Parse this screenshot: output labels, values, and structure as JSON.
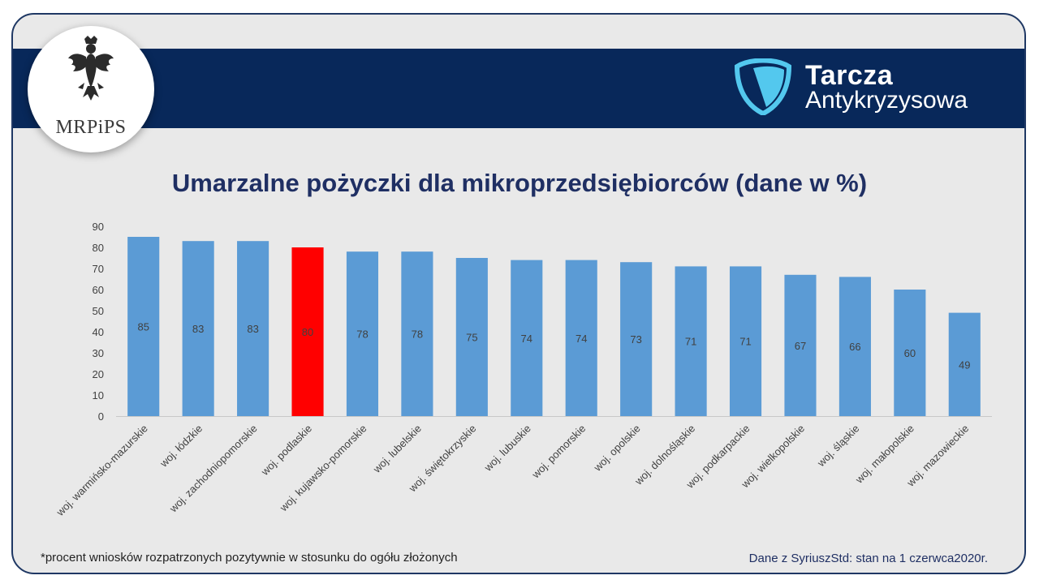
{
  "header": {
    "ministry": "MRPiPS",
    "brand_line1": "Tarcza",
    "brand_line2": "Antykryzysowa"
  },
  "colors": {
    "banner": "#08285a",
    "bar_default": "#5b9bd5",
    "bar_highlight": "#ff0000",
    "title": "#1f2f63",
    "shield": "#53c8ee"
  },
  "chart_data": {
    "type": "bar",
    "title": "Umarzalne pożyczki dla mikroprzedsiębiorców (dane w %)",
    "categories": [
      "woj. warmińsko-mazurskie",
      "woj. łódzkie",
      "woj. zachodniopomorskie",
      "woj. podlaskie",
      "woj. kujawsko-pomorskie",
      "woj. lubelskie",
      "woj. świętokrzyskie",
      "woj. lubuskie",
      "woj. pomorskie",
      "woj. opolskie",
      "woj. dolnośląskie",
      "woj. podkarpackie",
      "woj. wielkopolskie",
      "woj. śląskie",
      "woj. małopolskie",
      "woj. mazowieckie"
    ],
    "values": [
      85,
      83,
      83,
      80,
      78,
      78,
      75,
      74,
      74,
      73,
      71,
      71,
      67,
      66,
      60,
      49
    ],
    "highlight": "woj. podlaskie",
    "ylim": [
      0,
      90
    ],
    "yticks": [
      0,
      10,
      20,
      30,
      40,
      50,
      60,
      70,
      80,
      90
    ],
    "xlabel": "",
    "ylabel": "",
    "grid": false
  },
  "footer": {
    "footnote": "*procent wniosków rozpatrzonych pozytywnie w stosunku do ogółu złożonych",
    "source": "Dane z SyriuszStd: stan na 1 czerwca2020r."
  }
}
